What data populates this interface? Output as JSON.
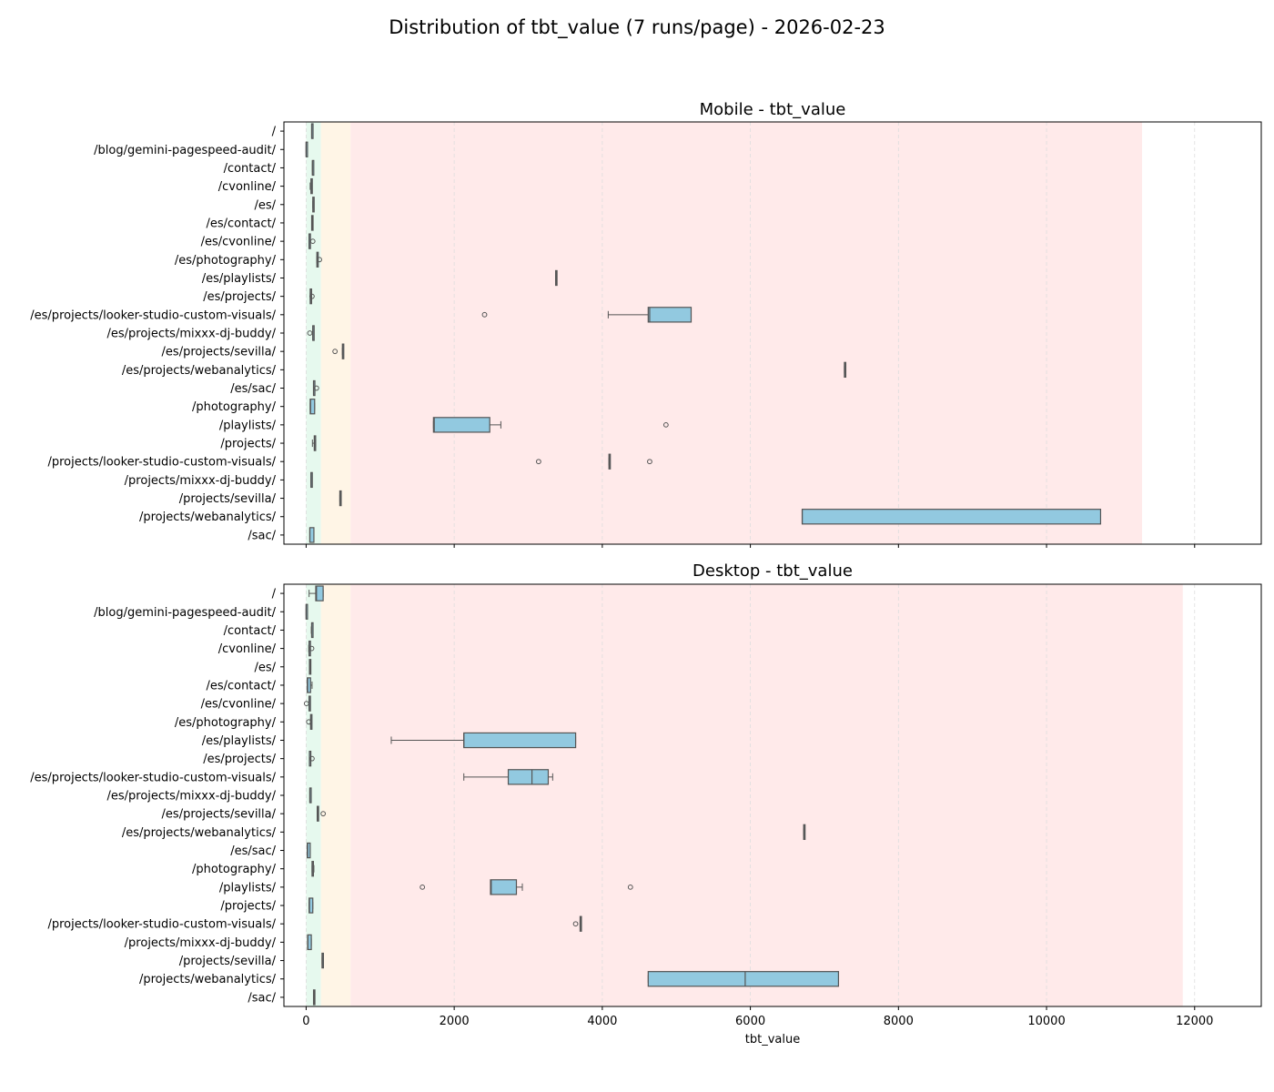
{
  "figure": {
    "title": "Distribution of tbt_value (7 runs/page) - 2026-02-23"
  },
  "colors": {
    "box_fill": "#92c9e0",
    "box_edge": "#555555",
    "zone_good": "#e6f9ee",
    "zone_mid": "#fff5e6",
    "zone_poor": "#ffeaea",
    "grid": "#dddddd"
  },
  "chart_data": [
    {
      "type": "boxplot",
      "orientation": "horizontal",
      "title": "Mobile - tbt_value",
      "xlabel": "",
      "xlim": [
        -300,
        12900
      ],
      "xticks": [
        0,
        2000,
        4000,
        6000,
        8000,
        10000,
        12000
      ],
      "grid": "x-dashed",
      "threshold_bands": [
        {
          "zone": "good",
          "from": 0,
          "to": 200
        },
        {
          "zone": "needs-improvement",
          "from": 200,
          "to": 600
        },
        {
          "zone": "poor",
          "from": 600,
          "to": 11290
        }
      ],
      "categories": [
        "/",
        "/blog/gemini-pagespeed-audit/",
        "/contact/",
        "/cvonline/",
        "/es/",
        "/es/contact/",
        "/es/cvonline/",
        "/es/photography/",
        "/es/playlists/",
        "/es/projects/",
        "/es/projects/looker-studio-custom-visuals/",
        "/es/projects/mixxx-dj-buddy/",
        "/es/projects/sevilla/",
        "/es/projects/webanalytics/",
        "/es/sac/",
        "/photography/",
        "/playlists/",
        "/projects/",
        "/projects/looker-studio-custom-visuals/",
        "/projects/mixxx-dj-buddy/",
        "/projects/sevilla/",
        "/projects/webanalytics/",
        "/sac/"
      ],
      "boxes": [
        {
          "whislo": 75,
          "q1": 75,
          "med": 75,
          "q3": 80,
          "whishi": 80,
          "fliers": []
        },
        {
          "whislo": 0,
          "q1": 0,
          "med": 0,
          "q3": 5,
          "whishi": 5,
          "fliers": []
        },
        {
          "whislo": 85,
          "q1": 85,
          "med": 85,
          "q3": 90,
          "whishi": 90,
          "fliers": []
        },
        {
          "whislo": 55,
          "q1": 65,
          "med": 70,
          "q3": 75,
          "whishi": 80,
          "fliers": []
        },
        {
          "whislo": 90,
          "q1": 90,
          "med": 95,
          "q3": 100,
          "whishi": 100,
          "fliers": []
        },
        {
          "whislo": 75,
          "q1": 75,
          "med": 80,
          "q3": 80,
          "whishi": 80,
          "fliers": []
        },
        {
          "whislo": 40,
          "q1": 40,
          "med": 40,
          "q3": 45,
          "whishi": 45,
          "fliers": [
            90
          ]
        },
        {
          "whislo": 145,
          "q1": 145,
          "med": 150,
          "q3": 150,
          "whishi": 150,
          "fliers": [
            180
          ]
        },
        {
          "whislo": 3370,
          "q1": 3370,
          "med": 3375,
          "q3": 3380,
          "whishi": 3380,
          "fliers": []
        },
        {
          "whislo": 55,
          "q1": 55,
          "med": 60,
          "q3": 60,
          "whishi": 60,
          "fliers": [
            80
          ]
        },
        {
          "whislo": 4080,
          "q1": 4620,
          "med": 4640,
          "q3": 5200,
          "whishi": 5200,
          "fliers": [
            2410
          ]
        },
        {
          "whislo": 90,
          "q1": 90,
          "med": 90,
          "q3": 95,
          "whishi": 95,
          "fliers": [
            50
          ]
        },
        {
          "whislo": 490,
          "q1": 490,
          "med": 495,
          "q3": 500,
          "whishi": 500,
          "fliers": [
            390
          ]
        },
        {
          "whislo": 7270,
          "q1": 7270,
          "med": 7275,
          "q3": 7280,
          "whishi": 7280,
          "fliers": []
        },
        {
          "whislo": 100,
          "q1": 100,
          "med": 100,
          "q3": 105,
          "whishi": 105,
          "fliers": [
            140
          ]
        },
        {
          "whislo": 55,
          "q1": 55,
          "med": 60,
          "q3": 115,
          "whishi": 115,
          "fliers": []
        },
        {
          "whislo": 1720,
          "q1": 1720,
          "med": 1730,
          "q3": 2480,
          "whishi": 2630,
          "fliers": [
            4860
          ]
        },
        {
          "whislo": 85,
          "q1": 110,
          "med": 115,
          "q3": 125,
          "whishi": 130,
          "fliers": []
        },
        {
          "whislo": 4090,
          "q1": 4090,
          "med": 4095,
          "q3": 4100,
          "whishi": 4100,
          "fliers": [
            3140,
            4640
          ]
        },
        {
          "whislo": 65,
          "q1": 65,
          "med": 65,
          "q3": 70,
          "whishi": 70,
          "fliers": []
        },
        {
          "whislo": 455,
          "q1": 455,
          "med": 460,
          "q3": 460,
          "whishi": 460,
          "fliers": []
        },
        {
          "whislo": 6700,
          "q1": 6700,
          "med": 6700,
          "q3": 10730,
          "whishi": 10730,
          "fliers": []
        },
        {
          "whislo": 50,
          "q1": 50,
          "med": 50,
          "q3": 105,
          "whishi": 105,
          "fliers": []
        }
      ]
    },
    {
      "type": "boxplot",
      "orientation": "horizontal",
      "title": "Desktop - tbt_value",
      "xlabel": "tbt_value",
      "xlim": [
        -300,
        12900
      ],
      "xticks": [
        0,
        2000,
        4000,
        6000,
        8000,
        10000,
        12000
      ],
      "grid": "x-dashed",
      "threshold_bands": [
        {
          "zone": "good",
          "from": 0,
          "to": 200
        },
        {
          "zone": "needs-improvement",
          "from": 200,
          "to": 600
        },
        {
          "zone": "poor",
          "from": 600,
          "to": 11840
        }
      ],
      "categories": [
        "/",
        "/blog/gemini-pagespeed-audit/",
        "/contact/",
        "/cvonline/",
        "/es/",
        "/es/contact/",
        "/es/cvonline/",
        "/es/photography/",
        "/es/playlists/",
        "/es/projects/",
        "/es/projects/looker-studio-custom-visuals/",
        "/es/projects/mixxx-dj-buddy/",
        "/es/projects/sevilla/",
        "/es/projects/webanalytics/",
        "/es/sac/",
        "/photography/",
        "/playlists/",
        "/projects/",
        "/projects/looker-studio-custom-visuals/",
        "/projects/mixxx-dj-buddy/",
        "/projects/sevilla/",
        "/projects/webanalytics/",
        "/sac/"
      ],
      "boxes": [
        {
          "whislo": 40,
          "q1": 130,
          "med": 140,
          "q3": 230,
          "whishi": 230,
          "fliers": []
        },
        {
          "whislo": 0,
          "q1": 0,
          "med": 0,
          "q3": 5,
          "whishi": 5,
          "fliers": []
        },
        {
          "whislo": 70,
          "q1": 75,
          "med": 75,
          "q3": 80,
          "whishi": 85,
          "fliers": []
        },
        {
          "whislo": 35,
          "q1": 40,
          "med": 40,
          "q3": 45,
          "whishi": 45,
          "fliers": [
            75
          ]
        },
        {
          "whislo": 45,
          "q1": 45,
          "med": 50,
          "q3": 55,
          "whishi": 55,
          "fliers": []
        },
        {
          "whislo": 15,
          "q1": 15,
          "med": 20,
          "q3": 60,
          "whishi": 80,
          "fliers": []
        },
        {
          "whislo": 40,
          "q1": 40,
          "med": 40,
          "q3": 45,
          "whishi": 45,
          "fliers": [
            5
          ]
        },
        {
          "whislo": 60,
          "q1": 60,
          "med": 65,
          "q3": 70,
          "whishi": 70,
          "fliers": [
            35
          ]
        },
        {
          "whislo": 1150,
          "q1": 2130,
          "med": 2130,
          "q3": 3640,
          "whishi": 3640,
          "fliers": []
        },
        {
          "whislo": 45,
          "q1": 45,
          "med": 45,
          "q3": 50,
          "whishi": 50,
          "fliers": [
            80
          ]
        },
        {
          "whislo": 2130,
          "q1": 2730,
          "med": 3050,
          "q3": 3270,
          "whishi": 3330,
          "fliers": []
        },
        {
          "whislo": 50,
          "q1": 50,
          "med": 50,
          "q3": 55,
          "whishi": 55,
          "fliers": []
        },
        {
          "whislo": 150,
          "q1": 150,
          "med": 155,
          "q3": 155,
          "whishi": 155,
          "fliers": [
            230
          ]
        },
        {
          "whislo": 6720,
          "q1": 6720,
          "med": 6725,
          "q3": 6730,
          "whishi": 6730,
          "fliers": []
        },
        {
          "whislo": 15,
          "q1": 15,
          "med": 20,
          "q3": 55,
          "whishi": 55,
          "fliers": []
        },
        {
          "whislo": 80,
          "q1": 80,
          "med": 85,
          "q3": 90,
          "whishi": 105,
          "fliers": []
        },
        {
          "whislo": 2490,
          "q1": 2490,
          "med": 2500,
          "q3": 2840,
          "whishi": 2920,
          "fliers": [
            1570,
            4380
          ]
        },
        {
          "whislo": 40,
          "q1": 40,
          "med": 45,
          "q3": 90,
          "whishi": 90,
          "fliers": []
        },
        {
          "whislo": 3700,
          "q1": 3700,
          "med": 3705,
          "q3": 3710,
          "whishi": 3710,
          "fliers": [
            3640
          ]
        },
        {
          "whislo": 20,
          "q1": 20,
          "med": 25,
          "q3": 70,
          "whishi": 70,
          "fliers": []
        },
        {
          "whislo": 215,
          "q1": 215,
          "med": 220,
          "q3": 225,
          "whishi": 225,
          "fliers": []
        },
        {
          "whislo": 4620,
          "q1": 4620,
          "med": 5930,
          "q3": 7190,
          "whishi": 7190,
          "fliers": []
        },
        {
          "whislo": 100,
          "q1": 100,
          "med": 105,
          "q3": 110,
          "whishi": 110,
          "fliers": []
        }
      ]
    }
  ]
}
